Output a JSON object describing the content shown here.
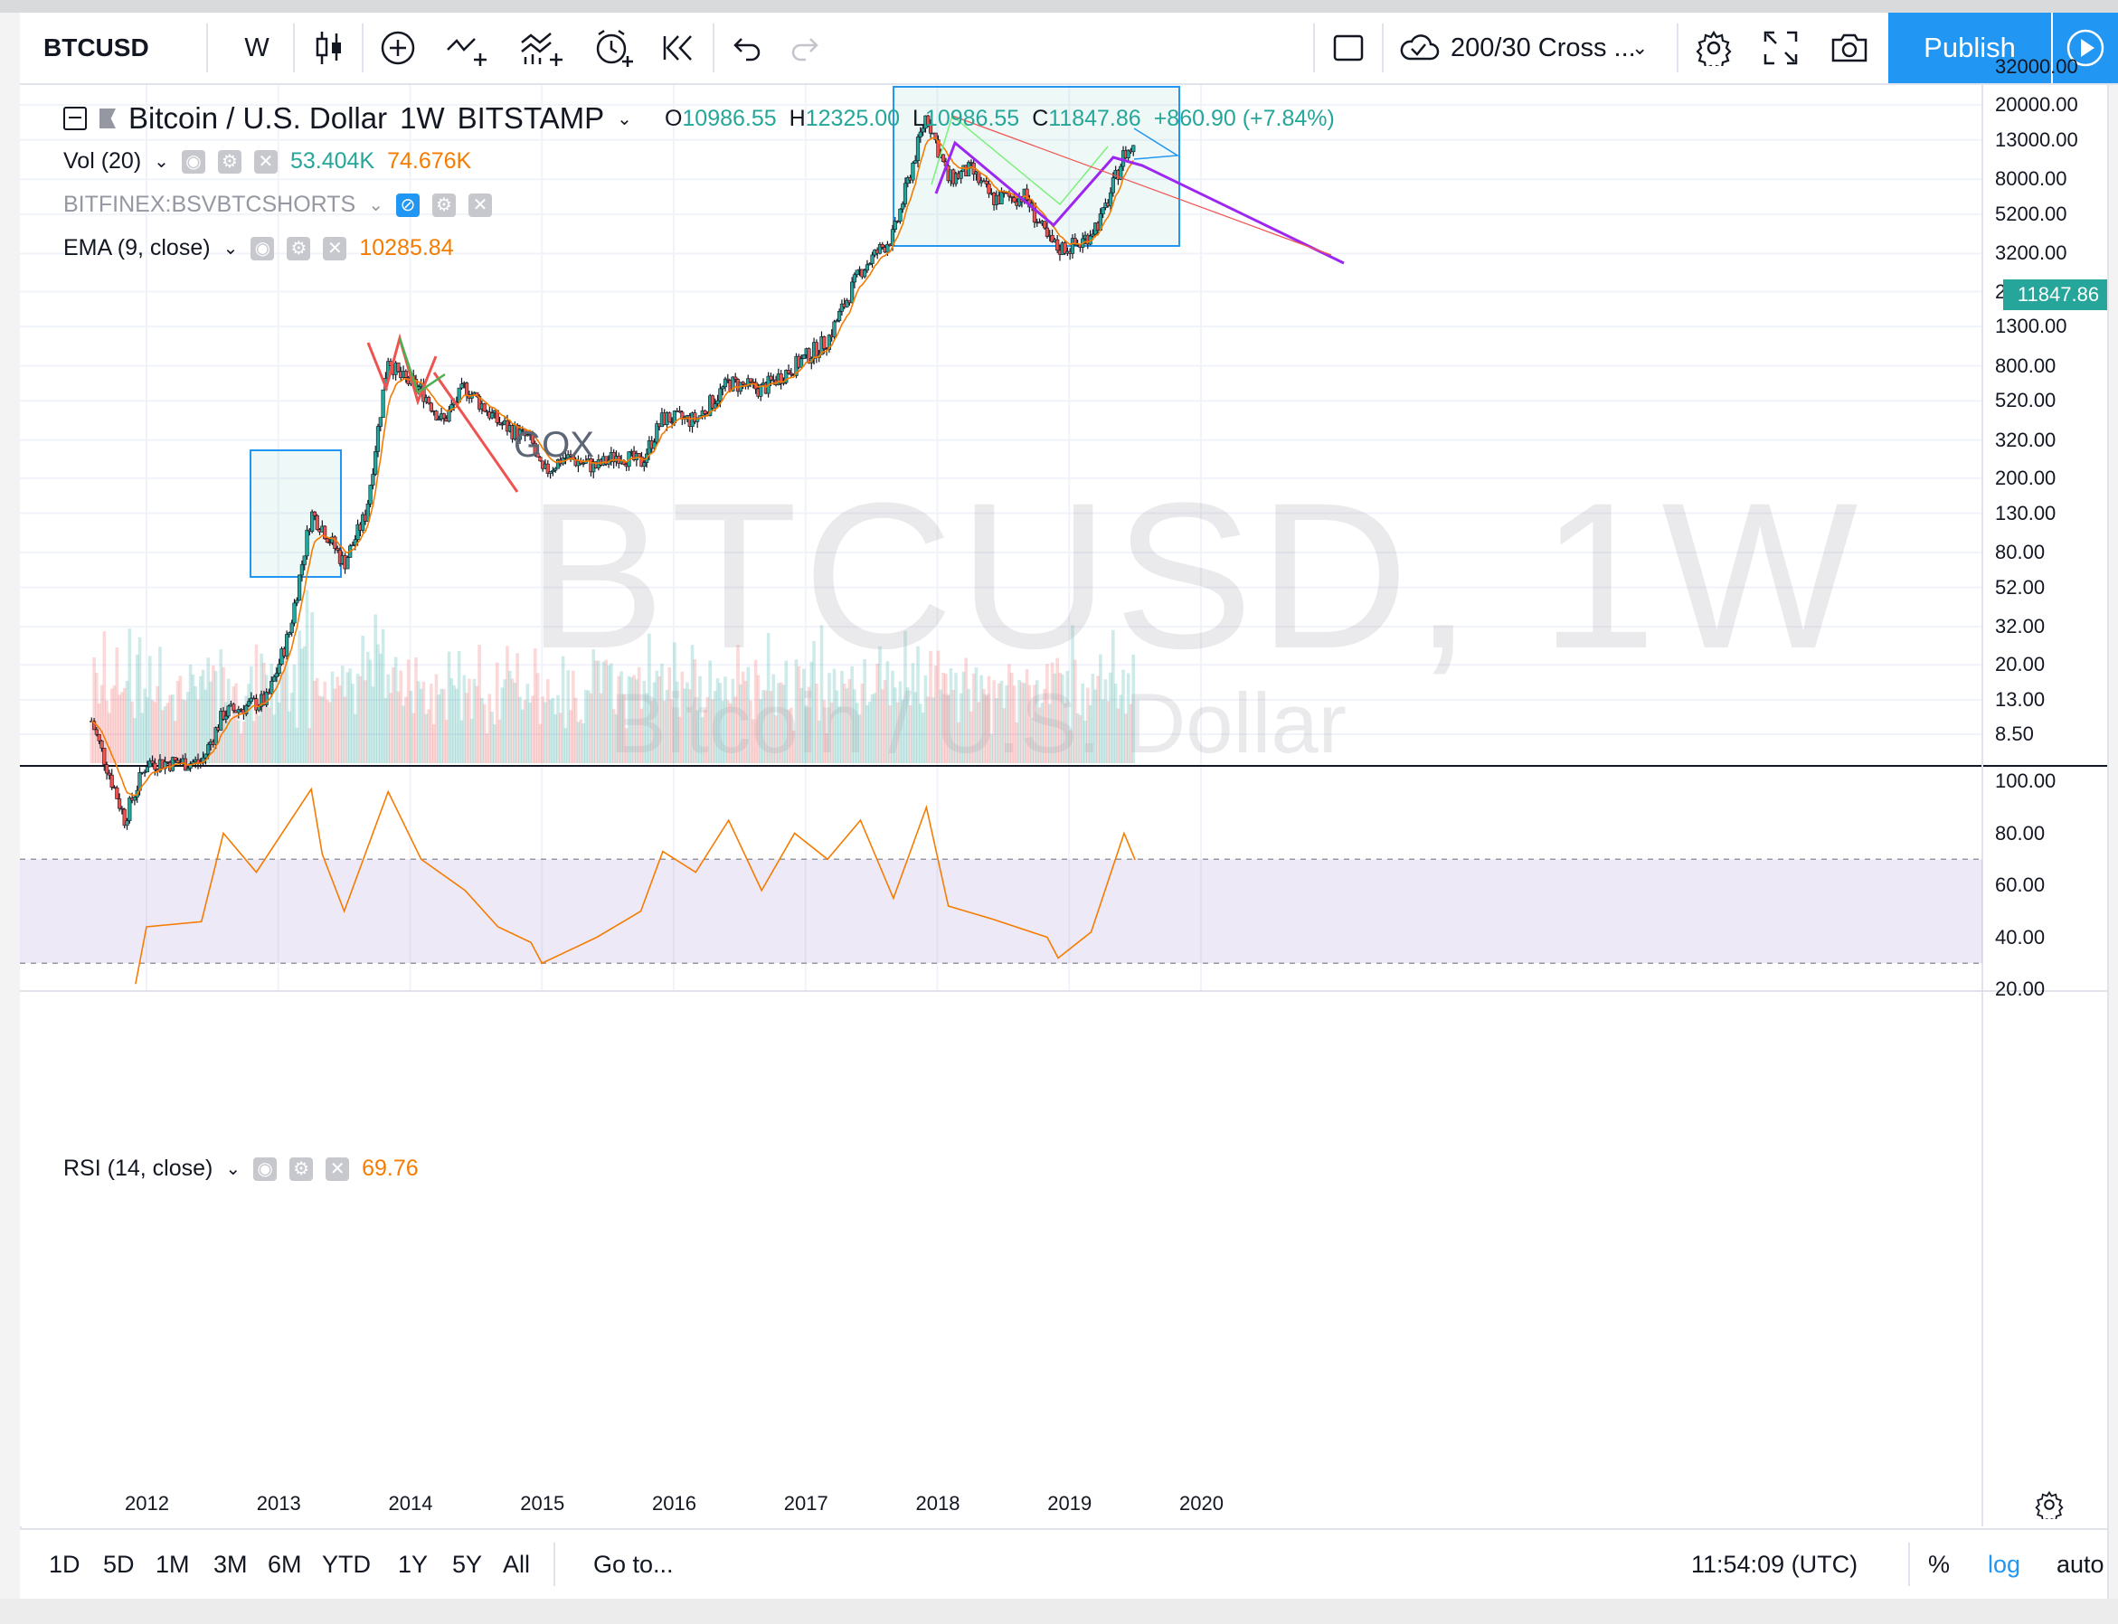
{
  "toolbar": {
    "symbol": "BTCUSD",
    "interval": "W",
    "strategy": "200/30 Cross ...",
    "publish_label": "Publish"
  },
  "legend": {
    "title": "Bitcoin / U.S. Dollar",
    "interval": "1W",
    "exchange": "BITSTAMP",
    "open_label": "O",
    "open": "10986.55",
    "high_label": "H",
    "high": "12325.00",
    "low_label": "L",
    "low": "10986.55",
    "close_label": "C",
    "close": "11847.86",
    "change": "+860.90 (+7.84%)"
  },
  "studies": {
    "vol_label": "Vol (20)",
    "vol_value": "53.404K",
    "vol_ma": "74.676K",
    "shorts_label": "BITFINEX:BSVBTCSHORTS",
    "ema_label": "EMA (9, close)",
    "ema_value": "10285.84",
    "rsi_label": "RSI (14, close)",
    "rsi_value": "69.76"
  },
  "watermark": {
    "symbol": "BTCUSD, 1W",
    "description": "Bitcoin / U.S. Dollar"
  },
  "annotation": {
    "gox": "GOX"
  },
  "price_axis": [
    "32000.00",
    "20000.00",
    "13000.00",
    "8000.00",
    "5200.00",
    "3200.00",
    "2000.00",
    "1300.00",
    "800.00",
    "520.00",
    "320.00",
    "200.00",
    "130.00",
    "80.00",
    "52.00",
    "32.00",
    "20.00",
    "13.00",
    "8.50"
  ],
  "last_price_tag": "11847.86",
  "rsi_axis": [
    "100.00",
    "80.00",
    "60.00",
    "40.00",
    "20.00"
  ],
  "time_axis": [
    "2012",
    "2013",
    "2014",
    "2015",
    "2016",
    "2017",
    "2018",
    "2019",
    "2020"
  ],
  "bottom": {
    "ranges": [
      "1D",
      "5D",
      "1M",
      "3M",
      "6M",
      "YTD",
      "1Y",
      "5Y",
      "All"
    ],
    "goto": "Go to...",
    "clock": "11:54:09 (UTC)",
    "percent": "%",
    "log": "log",
    "auto": "auto"
  },
  "colors": {
    "up": "#26a69a",
    "down": "#ef5350",
    "accent": "#2196f3",
    "ema": "#f57c00",
    "rsi_line": "#f57c00",
    "rsi_band": "#9575cd",
    "trend_purple": "#9c27f0"
  },
  "chart_data": {
    "type": "candlestick",
    "symbol": "BTCUSD",
    "scale": "log",
    "ylim": [
      8.5,
      32000
    ],
    "xlim": [
      "2011-08",
      "2020-12"
    ],
    "price_path": [
      [
        "2011-08",
        10
      ],
      [
        "2011-11",
        3
      ],
      [
        "2012-01",
        6
      ],
      [
        "2012-06",
        6
      ],
      [
        "2012-08",
        11
      ],
      [
        "2012-12",
        13
      ],
      [
        "2013-02",
        30
      ],
      [
        "2013-04",
        130
      ],
      [
        "2013-05",
        110
      ],
      [
        "2013-07",
        70
      ],
      [
        "2013-09",
        130
      ],
      [
        "2013-11",
        900
      ],
      [
        "2013-12",
        700
      ],
      [
        "2014-02",
        600
      ],
      [
        "2014-04",
        400
      ],
      [
        "2014-06",
        620
      ],
      [
        "2014-09",
        400
      ],
      [
        "2014-12",
        320
      ],
      [
        "2015-01",
        210
      ],
      [
        "2015-03",
        260
      ],
      [
        "2015-06",
        230
      ],
      [
        "2015-08",
        270
      ],
      [
        "2015-10",
        240
      ],
      [
        "2015-12",
        420
      ],
      [
        "2016-03",
        410
      ],
      [
        "2016-06",
        650
      ],
      [
        "2016-09",
        600
      ],
      [
        "2016-12",
        800
      ],
      [
        "2017-03",
        1100
      ],
      [
        "2017-06",
        2600
      ],
      [
        "2017-09",
        4000
      ],
      [
        "2017-12",
        18000
      ],
      [
        "2018-02",
        8000
      ],
      [
        "2018-04",
        9000
      ],
      [
        "2018-06",
        6300
      ],
      [
        "2018-09",
        6500
      ],
      [
        "2018-11",
        3800
      ],
      [
        "2018-12",
        3400
      ],
      [
        "2019-02",
        3600
      ],
      [
        "2019-04",
        5000
      ],
      [
        "2019-06",
        11000
      ],
      [
        "2019-07",
        11847.86
      ]
    ],
    "rsi": {
      "name": "RSI (14, close)",
      "ylim": [
        20,
        100
      ],
      "band": [
        30,
        70
      ],
      "points": [
        [
          "2011-12",
          22
        ],
        [
          "2012-01",
          44
        ],
        [
          "2012-06",
          46
        ],
        [
          "2012-08",
          80
        ],
        [
          "2012-11",
          65
        ],
        [
          "2013-04",
          97
        ],
        [
          "2013-05",
          72
        ],
        [
          "2013-07",
          50
        ],
        [
          "2013-11",
          96
        ],
        [
          "2014-02",
          70
        ],
        [
          "2014-06",
          58
        ],
        [
          "2014-09",
          44
        ],
        [
          "2014-12",
          38
        ],
        [
          "2015-01",
          30
        ],
        [
          "2015-06",
          40
        ],
        [
          "2015-10",
          50
        ],
        [
          "2015-12",
          73
        ],
        [
          "2016-03",
          65
        ],
        [
          "2016-06",
          85
        ],
        [
          "2016-09",
          58
        ],
        [
          "2016-12",
          80
        ],
        [
          "2017-03",
          70
        ],
        [
          "2017-06",
          85
        ],
        [
          "2017-09",
          55
        ],
        [
          "2017-12",
          90
        ],
        [
          "2018-02",
          52
        ],
        [
          "2018-06",
          47
        ],
        [
          "2018-11",
          40
        ],
        [
          "2018-12",
          32
        ],
        [
          "2019-03",
          42
        ],
        [
          "2019-06",
          80
        ],
        [
          "2019-07",
          69.76
        ]
      ]
    },
    "volume": {
      "name": "Vol (20)",
      "last": "53.404K",
      "ma": "74.676K"
    },
    "ema": {
      "name": "EMA (9, close)",
      "last": "10285.84"
    }
  }
}
